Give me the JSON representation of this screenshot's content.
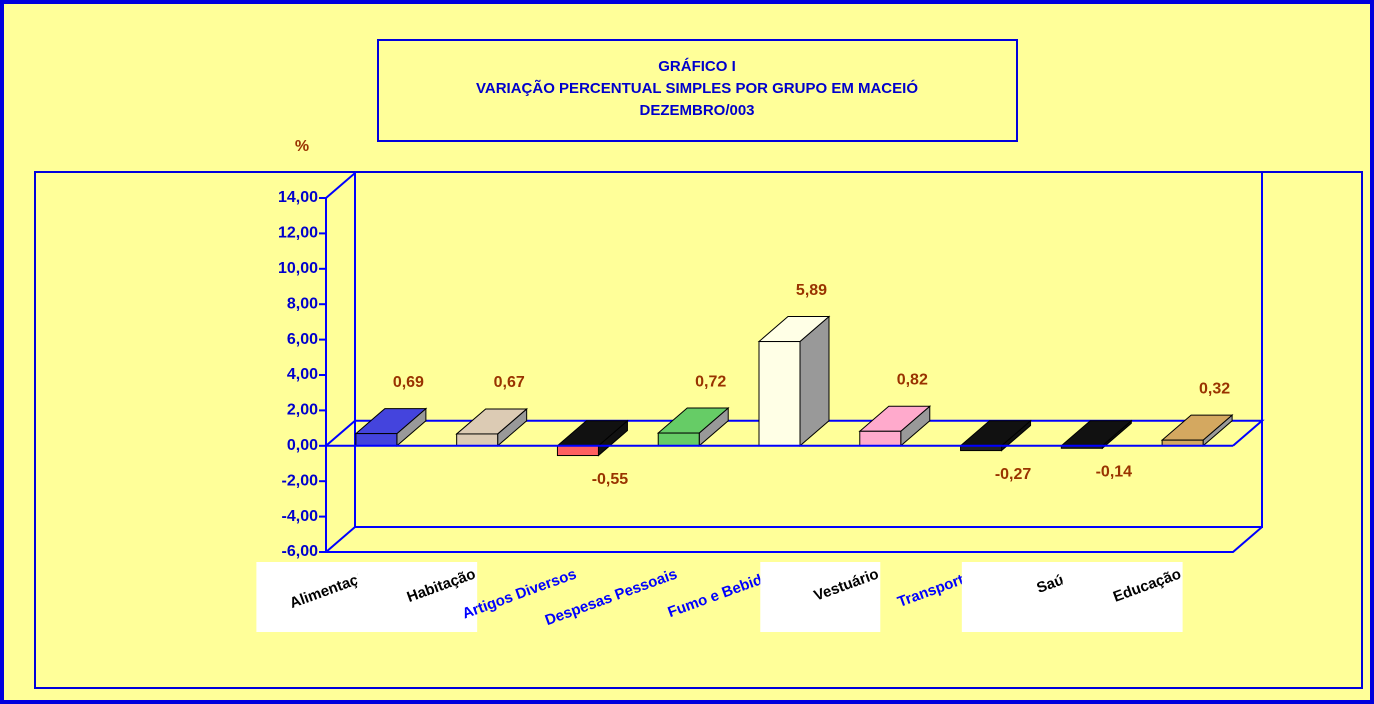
{
  "chart_data": {
    "type": "bar3d",
    "title": [
      "GRÁFICO I",
      "VARIAÇÃO PERCENTUAL SIMPLES POR GRUPO EM MACEIÓ",
      "DEZEMBRO/003"
    ],
    "y_label": "%",
    "categories": [
      "Alimentação",
      "Habitação",
      "Artigos Diversos",
      "Despesas Pessoais",
      "Fumo e Bebidas",
      "Vestuário",
      "Transportes",
      "Saúde",
      "Educação"
    ],
    "category_label_colors": [
      "#000000",
      "#000000",
      "#0000ff",
      "#0000ff",
      "#0000ff",
      "#000000",
      "#0000ff",
      "#000000",
      "#000000"
    ],
    "values": [
      0.69,
      0.67,
      -0.55,
      0.72,
      5.89,
      0.82,
      -0.27,
      -0.14,
      0.32
    ],
    "value_labels": [
      "0,69",
      "0,67",
      "-0,55",
      "0,72",
      "5,89",
      "0,82",
      "-0,27",
      "-0,14",
      "0,32"
    ],
    "colors": [
      "#4444dd",
      "#dccbb4",
      "#ff6060",
      "#66cc66",
      "#ffffe6",
      "#ffaacc",
      "#222222",
      "#222222",
      "#d4a860"
    ],
    "ylim": [
      -6,
      14
    ],
    "yticks": [
      {
        "value": -6,
        "label": "-6,00"
      },
      {
        "value": -4,
        "label": "-4,00"
      },
      {
        "value": -2,
        "label": "-2,00"
      },
      {
        "value": 0,
        "label": "0,00"
      },
      {
        "value": 2,
        "label": "2,00"
      },
      {
        "value": 4,
        "label": "4,00"
      },
      {
        "value": 6,
        "label": "6,00"
      },
      {
        "value": 8,
        "label": "8,00"
      },
      {
        "value": 10,
        "label": "10,00"
      },
      {
        "value": 12,
        "label": "12,00"
      },
      {
        "value": 14,
        "label": "14,00"
      }
    ]
  }
}
